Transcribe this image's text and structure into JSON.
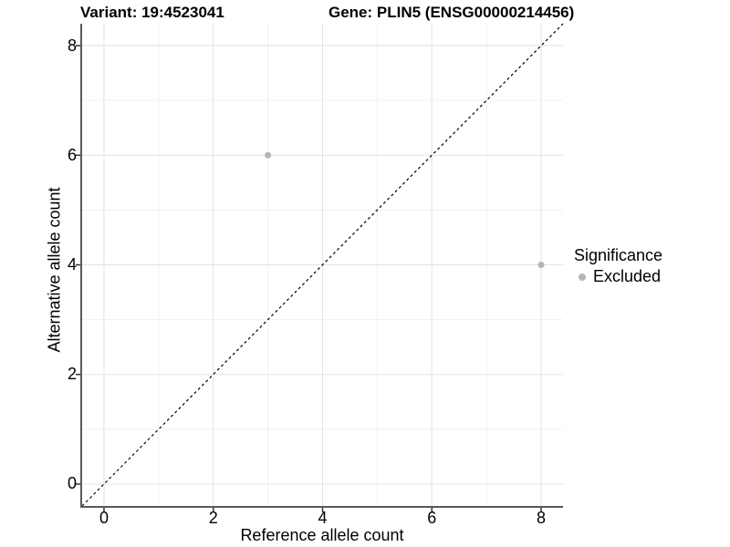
{
  "titles": {
    "variant": "Variant: 19:4523041",
    "gene": "Gene: PLIN5 (ENSG00000214456)"
  },
  "axes": {
    "x_title": "Reference allele count",
    "y_title": "Alternative allele count"
  },
  "legend": {
    "title": "Significance",
    "items": [
      {
        "label": "Excluded",
        "color": "#b5b5b5"
      }
    ]
  },
  "chart_data": {
    "type": "scatter",
    "title": "Variant: 19:4523041   Gene: PLIN5 (ENSG00000214456)",
    "xlabel": "Reference allele count",
    "ylabel": "Alternative allele count",
    "xlim": [
      -0.4,
      8.4
    ],
    "ylim": [
      -0.4,
      8.4
    ],
    "x_ticks": [
      0,
      2,
      4,
      6,
      8
    ],
    "y_ticks": [
      0,
      2,
      4,
      6,
      8
    ],
    "minor_gridlines": [
      1,
      3,
      5,
      7
    ],
    "grid": true,
    "legend_position": "right",
    "series": [
      {
        "name": "Excluded",
        "color": "#b5b5b5",
        "points": [
          {
            "x": 3,
            "y": 6
          },
          {
            "x": 8,
            "y": 4
          }
        ]
      }
    ],
    "reference_line": {
      "type": "identity",
      "style": "dashed",
      "color": "#000000"
    },
    "colors": {
      "gridline_major": "#e3e3e3",
      "gridline_minor": "#f0f0f0",
      "axis_line": "#595959",
      "tick_mark": "#333333",
      "point": "#b5b5b5"
    }
  }
}
